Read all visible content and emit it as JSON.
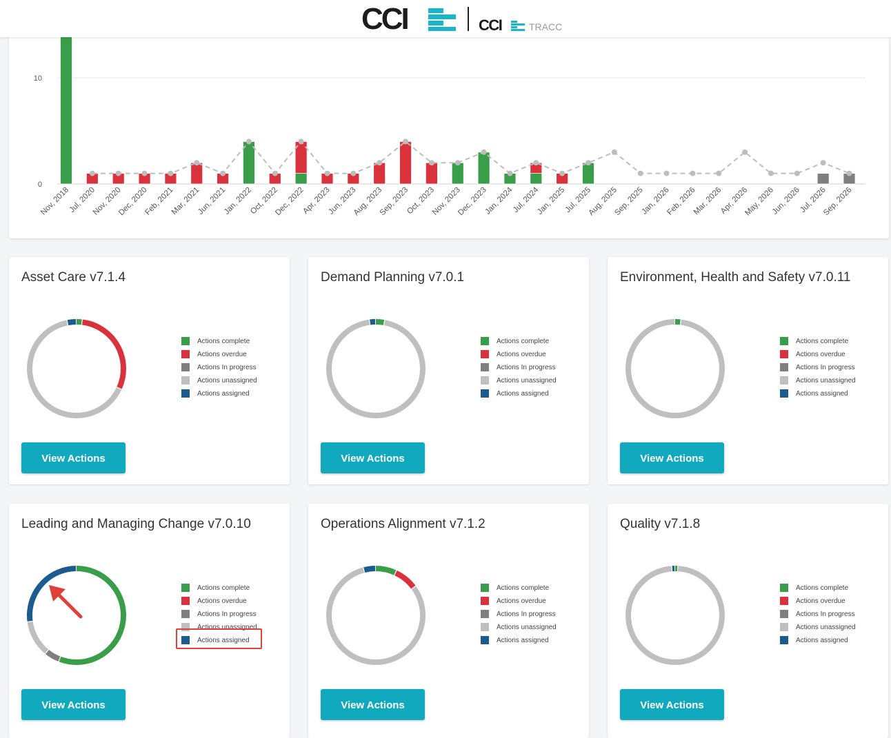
{
  "header": {
    "logo_text": "CCI",
    "sub_logo_text": "CCI",
    "sub_logo_product": "TRACC"
  },
  "colors": {
    "complete": "#3a9d4a",
    "overdue": "#d9323c",
    "in_progress": "#7f7f7f",
    "unassigned": "#bfbfbf",
    "assigned": "#1b5b8f",
    "accent": "#10a9bd"
  },
  "chart_data": {
    "type": "bar",
    "categories": [
      "Nov, 2018",
      "Jul, 2020",
      "Nov, 2020",
      "Dec, 2020",
      "Feb, 2021",
      "Mar, 2021",
      "Jun, 2021",
      "Jan, 2022",
      "Oct, 2022",
      "Dec, 2022",
      "Apr, 2023",
      "Jun, 2023",
      "Aug, 2023",
      "Sep, 2023",
      "Oct, 2023",
      "Nov, 2023",
      "Dec, 2023",
      "Jan, 2024",
      "Jul, 2024",
      "Jan, 2025",
      "Jul, 2025",
      "Aug, 2025",
      "Sep, 2025",
      "Jan, 2026",
      "Feb, 2026",
      "Mar, 2026",
      "Apr, 2026",
      "May, 2026",
      "Jun, 2026",
      "Jul, 2026",
      "Sep, 2026"
    ],
    "stacked": true,
    "series": [
      {
        "key": "complete",
        "values": [
          14,
          0,
          0,
          0,
          0,
          0,
          0,
          4,
          0,
          1,
          0,
          0,
          0,
          0,
          0,
          2,
          3,
          1,
          1,
          0,
          2,
          0,
          0,
          0,
          0,
          0,
          0,
          0,
          0,
          0,
          0
        ]
      },
      {
        "key": "overdue",
        "values": [
          0,
          1,
          1,
          1,
          1,
          2,
          1,
          0,
          1,
          3,
          1,
          1,
          2,
          4,
          2,
          0,
          0,
          0,
          1,
          1,
          0,
          0,
          0,
          0,
          0,
          0,
          0,
          0,
          0,
          0,
          0
        ]
      },
      {
        "key": "in_progress",
        "values": [
          0,
          0,
          0,
          0,
          0,
          0,
          0,
          0,
          0,
          0,
          0,
          0,
          0,
          0,
          0,
          0,
          0,
          0,
          0,
          0,
          0,
          0,
          0,
          0,
          0,
          0,
          0,
          0,
          0,
          1,
          1
        ]
      }
    ],
    "line": {
      "values": [
        null,
        1,
        1,
        1,
        1,
        2,
        1,
        4,
        1,
        4,
        1,
        1,
        2,
        4,
        2,
        2,
        3,
        1,
        2,
        1,
        2,
        3,
        1,
        1,
        1,
        1,
        3,
        1,
        1,
        2,
        1
      ]
    },
    "ylim": [
      0,
      14
    ],
    "yticks": [
      0,
      10
    ],
    "grid": true
  },
  "cards": [
    {
      "title": "Asset Care v7.1.4",
      "donut": [
        {
          "key": "complete",
          "value": 2
        },
        {
          "key": "overdue",
          "value": 30
        },
        {
          "key": "unassigned",
          "value": 65
        },
        {
          "key": "assigned",
          "value": 3
        }
      ],
      "button": "View Actions"
    },
    {
      "title": "Demand Planning v7.0.1",
      "donut": [
        {
          "key": "complete",
          "value": 3
        },
        {
          "key": "unassigned",
          "value": 95
        },
        {
          "key": "assigned",
          "value": 2
        }
      ],
      "button": "View Actions"
    },
    {
      "title": "Environment, Health and Safety v7.0.11",
      "donut": [
        {
          "key": "complete",
          "value": 2
        },
        {
          "key": "unassigned",
          "value": 98
        }
      ],
      "button": "View Actions"
    },
    {
      "title": "Leading and Managing Change v7.0.10",
      "donut": [
        {
          "key": "complete",
          "value": 56
        },
        {
          "key": "in_progress",
          "value": 5
        },
        {
          "key": "unassigned",
          "value": 12
        },
        {
          "key": "assigned",
          "value": 27
        }
      ],
      "button": "View Actions"
    },
    {
      "title": "Operations Alignment v7.1.2",
      "donut": [
        {
          "key": "complete",
          "value": 7
        },
        {
          "key": "overdue",
          "value": 8
        },
        {
          "key": "unassigned",
          "value": 81
        },
        {
          "key": "assigned",
          "value": 4
        }
      ],
      "button": "View Actions"
    },
    {
      "title": "Quality v7.1.8",
      "donut": [
        {
          "key": "complete",
          "value": 1
        },
        {
          "key": "unassigned",
          "value": 98
        },
        {
          "key": "assigned",
          "value": 1
        }
      ],
      "button": "View Actions"
    }
  ],
  "legend": [
    {
      "key": "complete",
      "label": "Actions complete"
    },
    {
      "key": "overdue",
      "label": "Actions overdue"
    },
    {
      "key": "in_progress",
      "label": "Actions In progress"
    },
    {
      "key": "unassigned",
      "label": "Actions unassigned"
    },
    {
      "key": "assigned",
      "label": "Actions assigned"
    }
  ]
}
